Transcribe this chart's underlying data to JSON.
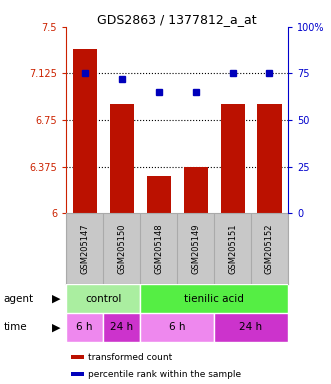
{
  "title": "GDS2863 / 1377812_a_at",
  "samples": [
    "GSM205147",
    "GSM205150",
    "GSM205148",
    "GSM205149",
    "GSM205151",
    "GSM205152"
  ],
  "bar_values": [
    7.32,
    6.88,
    6.3,
    6.37,
    6.88,
    6.88
  ],
  "percentile_values": [
    75,
    72,
    65,
    65,
    75,
    75
  ],
  "ylim_left": [
    6.0,
    7.5
  ],
  "ylim_right": [
    0,
    100
  ],
  "yticks_left": [
    6.0,
    6.375,
    6.75,
    7.125,
    7.5
  ],
  "ytick_labels_left": [
    "6",
    "6.375",
    "6.75",
    "7.125",
    "7.5"
  ],
  "yticks_right": [
    0,
    25,
    50,
    75,
    100
  ],
  "ytick_labels_right": [
    "0",
    "25",
    "50",
    "75",
    "100%"
  ],
  "hlines": [
    6.375,
    6.75,
    7.125
  ],
  "bar_color": "#bb1100",
  "dot_color": "#0000bb",
  "agent_groups": [
    {
      "label": "control",
      "start": 0,
      "end": 2,
      "color": "#aaeea0"
    },
    {
      "label": "tienilic acid",
      "start": 2,
      "end": 6,
      "color": "#55ee44"
    }
  ],
  "time_colors_light": "#ee88ee",
  "time_colors_dark": "#cc33cc",
  "time_groups": [
    {
      "label": "6 h",
      "start": 0,
      "end": 1,
      "color": "#ee88ee"
    },
    {
      "label": "24 h",
      "start": 1,
      "end": 2,
      "color": "#cc33cc"
    },
    {
      "label": "6 h",
      "start": 2,
      "end": 4,
      "color": "#ee88ee"
    },
    {
      "label": "24 h",
      "start": 4,
      "end": 6,
      "color": "#cc33cc"
    }
  ],
  "legend_bar_label": "transformed count",
  "legend_dot_label": "percentile rank within the sample",
  "left_axis_color": "#cc2200",
  "right_axis_color": "#0000cc",
  "gsm_bg": "#c8c8c8",
  "gsm_border": "#aaaaaa",
  "background_color": "#ffffff"
}
